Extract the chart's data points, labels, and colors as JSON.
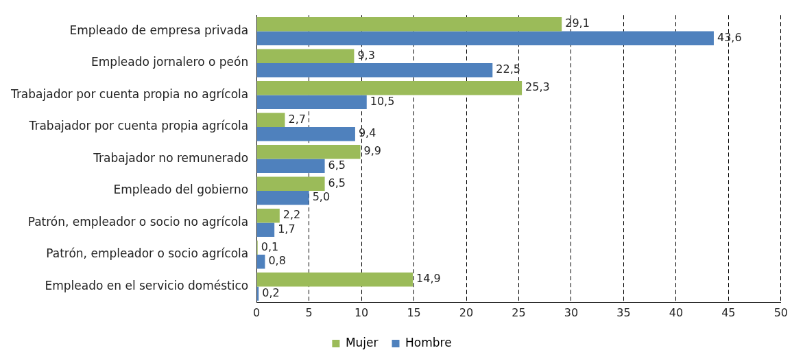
{
  "chart_data": {
    "type": "bar",
    "orientation": "horizontal",
    "categories": [
      "Empleado de empresa privada",
      "Empleado jornalero o peón",
      "Trabajador por cuenta propia no agrícola",
      "Trabajador por cuenta propia agrícola",
      "Trabajador no remunerado",
      "Empleado del gobierno",
      "Patrón, empleador o socio no agrícola",
      "Patrón, empleador o socio agrícola",
      "Empleado en el servicio doméstico"
    ],
    "series": [
      {
        "name": "Mujer",
        "color": "#9bbb59",
        "values": [
          29.1,
          9.3,
          25.3,
          2.7,
          9.9,
          6.5,
          2.2,
          0.1,
          14.9
        ],
        "value_labels": [
          "29,1",
          "9,3",
          "25,3",
          "2,7",
          "9,9",
          "6,5",
          "2,2",
          "0,1",
          "14,9"
        ]
      },
      {
        "name": "Hombre",
        "color": "#4f81bd",
        "values": [
          43.6,
          22.5,
          10.5,
          9.4,
          6.5,
          5.0,
          1.7,
          0.8,
          0.2
        ],
        "value_labels": [
          "43,6",
          "22,5",
          "10,5",
          "9,4",
          "6,5",
          "5,0",
          "1,7",
          "0,8",
          "0,2"
        ]
      }
    ],
    "xlim": [
      0,
      50
    ],
    "xticks": [
      0,
      5,
      10,
      15,
      20,
      25,
      30,
      35,
      40,
      45,
      50
    ],
    "grid": "x",
    "legend": "bottom"
  }
}
